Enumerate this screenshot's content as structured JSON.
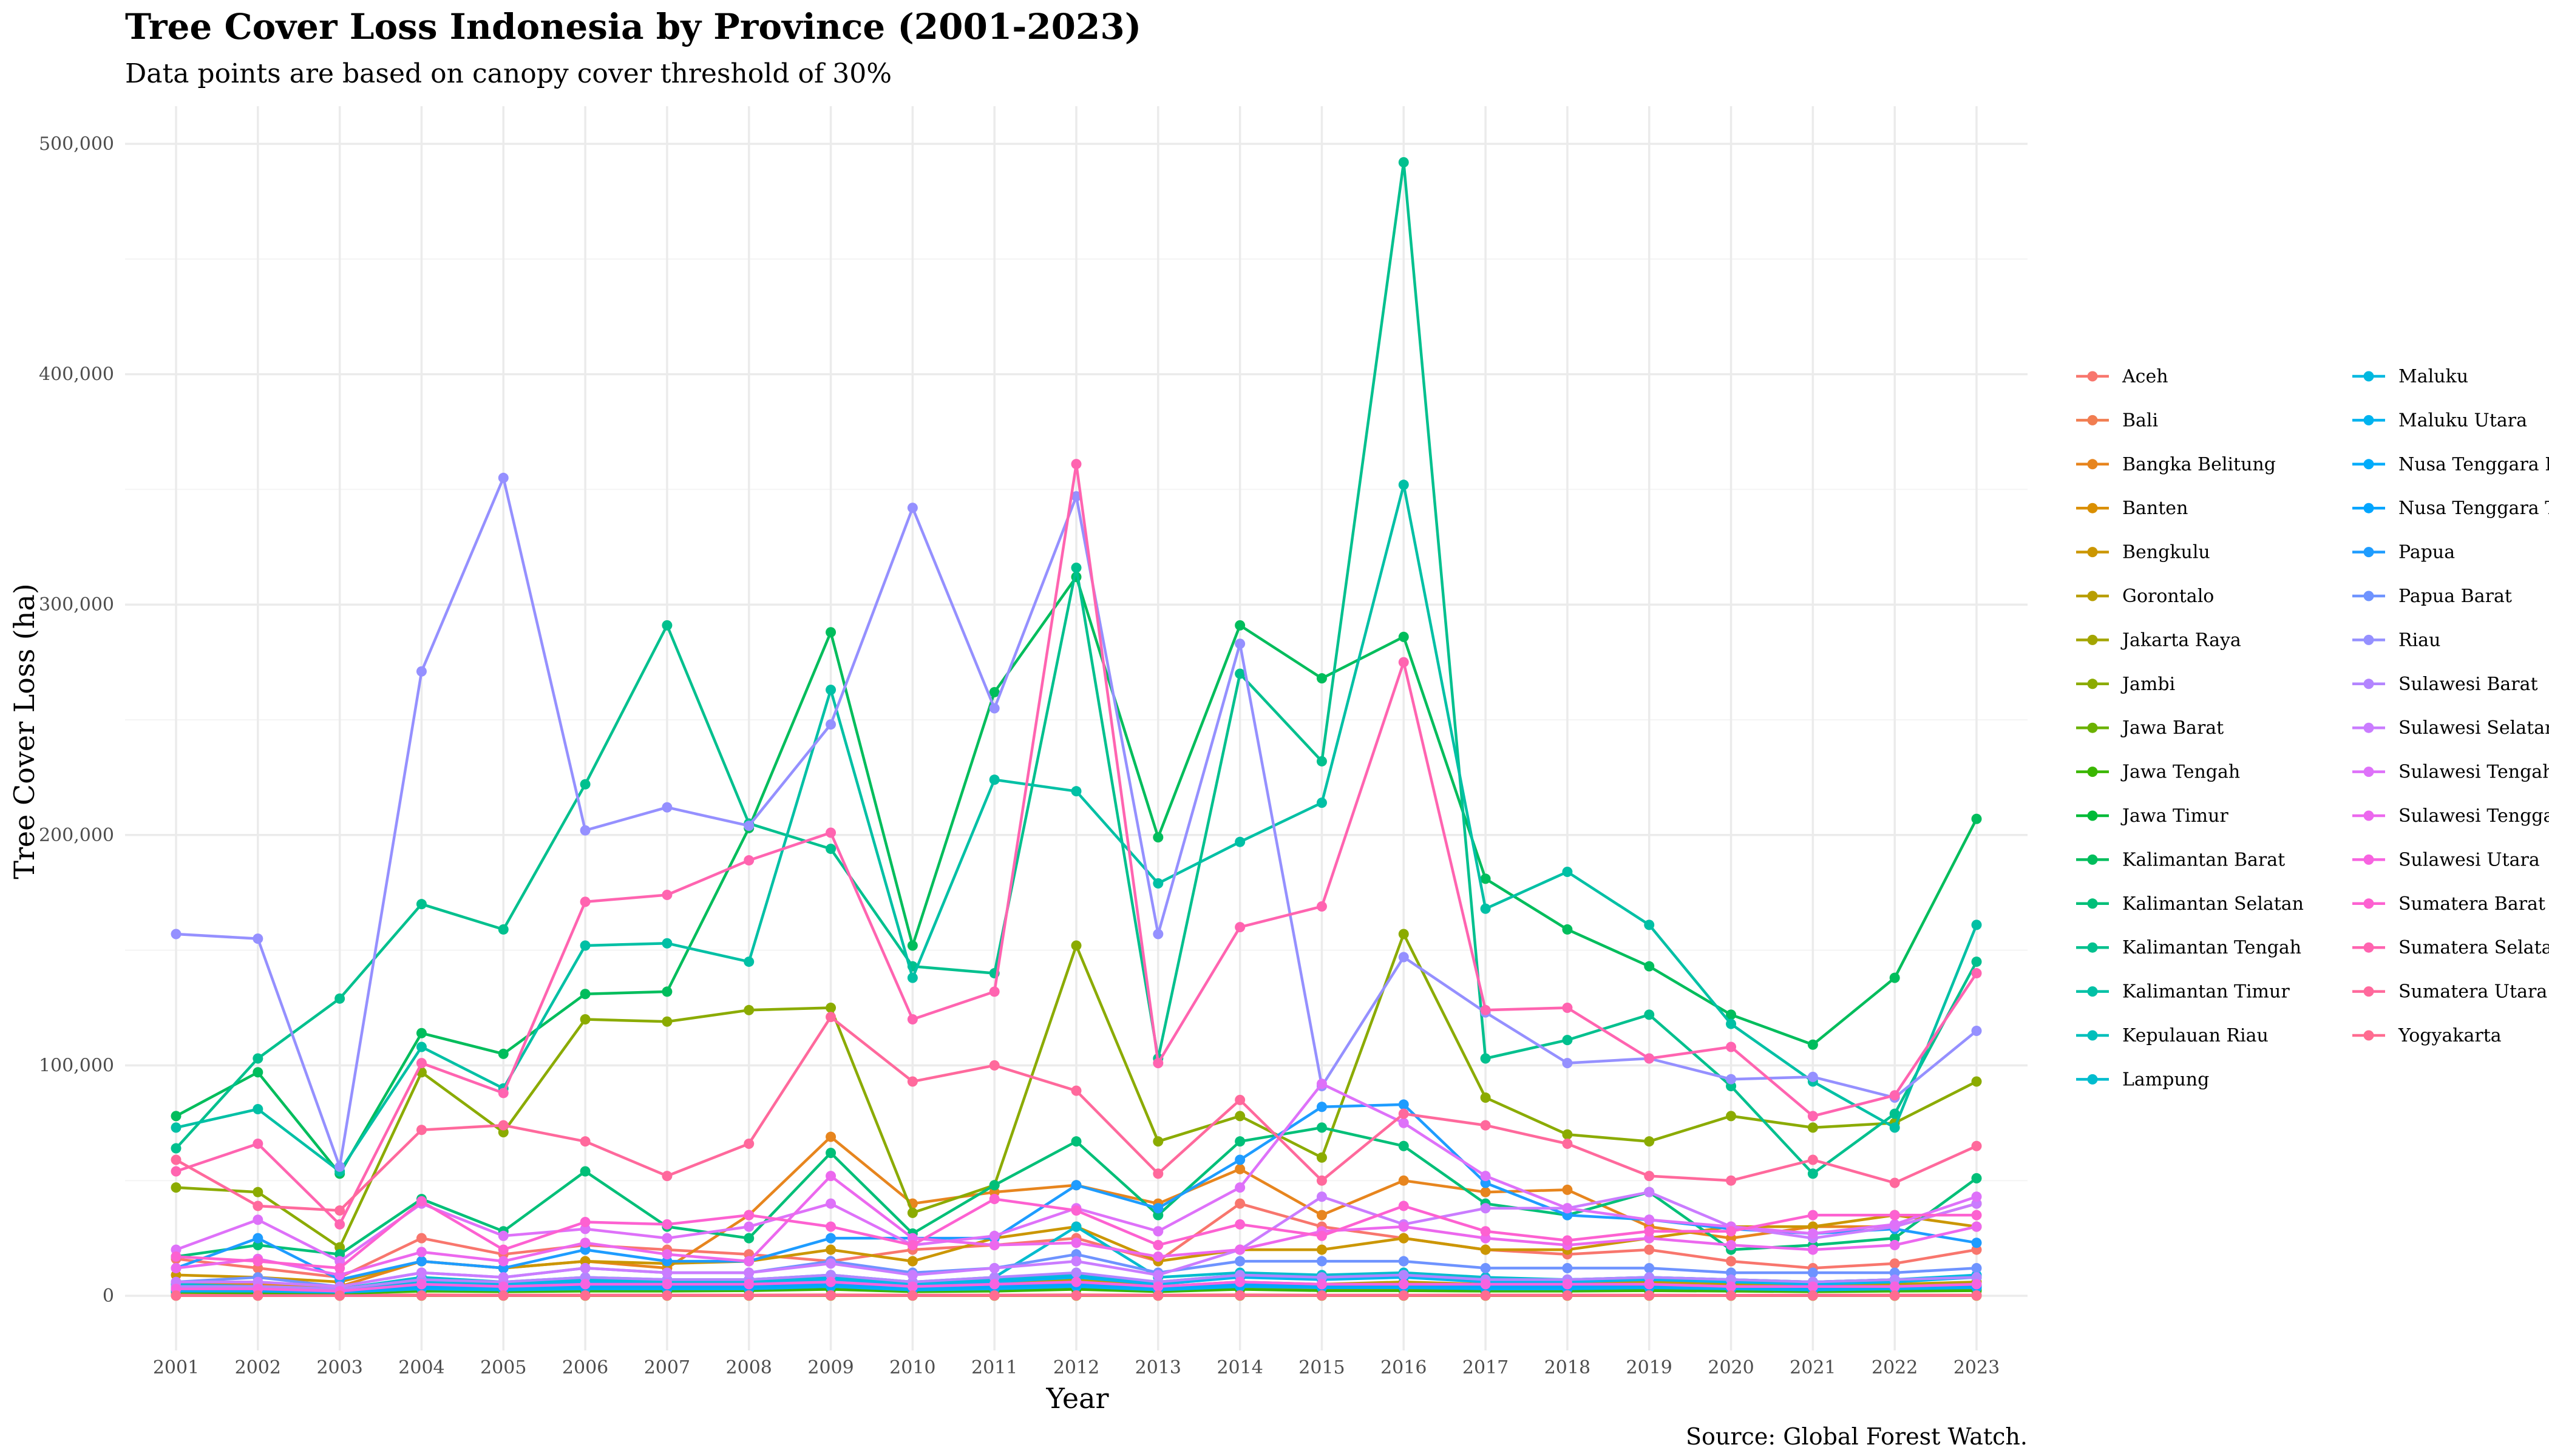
{
  "chart_data": {
    "type": "line",
    "title": "Tree Cover Loss Indonesia by Province (2001-2023)",
    "subtitle": "Data points are based on canopy cover threshold of 30%",
    "xlabel": "Year",
    "ylabel": "Tree Cover Loss (ha)",
    "caption": "Source: Global Forest Watch.",
    "ylim": [
      0,
      500000
    ],
    "y_ticks": [
      0,
      100000,
      200000,
      300000,
      400000,
      500000
    ],
    "y_tick_labels": [
      "0",
      "100,000",
      "200,000",
      "300,000",
      "400,000",
      "500,000"
    ],
    "grid": true,
    "legend_position": "right",
    "x": [
      "2001",
      "2002",
      "2003",
      "2004",
      "2005",
      "2006",
      "2007",
      "2008",
      "2009",
      "2010",
      "2011",
      "2012",
      "2013",
      "2014",
      "2015",
      "2016",
      "2017",
      "2018",
      "2019",
      "2020",
      "2021",
      "2022",
      "2023"
    ],
    "series": [
      {
        "name": "Aceh",
        "color": "#F8766D",
        "values": [
          16000,
          12000,
          8000,
          25000,
          18000,
          22000,
          20000,
          18000,
          15000,
          20000,
          22000,
          25000,
          15000,
          40000,
          30000,
          25000,
          20000,
          18000,
          20000,
          15000,
          12000,
          14000,
          20000
        ]
      },
      {
        "name": "Bali",
        "color": "#F17D51",
        "values": [
          300,
          300,
          200,
          400,
          300,
          300,
          300,
          300,
          400,
          300,
          300,
          400,
          300,
          400,
          300,
          300,
          300,
          300,
          300,
          200,
          300,
          300,
          300
        ]
      },
      {
        "name": "Bangka Belitung",
        "color": "#E7851E",
        "values": [
          5000,
          5000,
          4000,
          15000,
          12000,
          15000,
          12000,
          35000,
          69000,
          40000,
          45000,
          48000,
          40000,
          55000,
          35000,
          50000,
          45000,
          46000,
          30000,
          25000,
          30000,
          30000,
          40000
        ]
      },
      {
        "name": "Banten",
        "color": "#DA8F00",
        "values": [
          2000,
          1800,
          1200,
          3000,
          2500,
          3000,
          2800,
          3000,
          4000,
          2500,
          3000,
          3500,
          2500,
          4000,
          3000,
          3000,
          2500,
          2500,
          3000,
          2500,
          2000,
          2500,
          3000
        ]
      },
      {
        "name": "Bengkulu",
        "color": "#CB9600",
        "values": [
          9000,
          8000,
          6000,
          15000,
          12000,
          15000,
          14000,
          15000,
          20000,
          15000,
          25000,
          30000,
          15000,
          20000,
          20000,
          25000,
          20000,
          20000,
          25000,
          30000,
          30000,
          35000,
          30000
        ]
      },
      {
        "name": "Gorontalo",
        "color": "#B89E00",
        "values": [
          3000,
          2500,
          2000,
          4000,
          3500,
          4000,
          4000,
          5000,
          7000,
          4000,
          5000,
          7000,
          4000,
          6000,
          5000,
          6000,
          5000,
          5000,
          6000,
          5000,
          4000,
          5000,
          6000
        ]
      },
      {
        "name": "Jakarta Raya",
        "color": "#A3A500",
        "values": [
          50,
          50,
          40,
          60,
          50,
          50,
          60,
          50,
          60,
          50,
          50,
          60,
          50,
          60,
          50,
          50,
          50,
          50,
          50,
          40,
          40,
          40,
          50
        ]
      },
      {
        "name": "Jambi",
        "color": "#8BAB00",
        "values": [
          47000,
          45000,
          21000,
          97000,
          71000,
          120000,
          119000,
          124000,
          125000,
          36000,
          48000,
          152000,
          67000,
          78000,
          60000,
          157000,
          86000,
          70000,
          67000,
          78000,
          73000,
          75000,
          93000
        ]
      },
      {
        "name": "Jawa Barat",
        "color": "#6BB100",
        "values": [
          2500,
          2000,
          1500,
          3500,
          3000,
          3500,
          3500,
          4000,
          5000,
          3000,
          3500,
          5000,
          3000,
          5000,
          4000,
          4000,
          3500,
          3500,
          4000,
          3500,
          3000,
          3500,
          4000
        ]
      },
      {
        "name": "Jawa Tengah",
        "color": "#3AB600",
        "values": [
          1500,
          1200,
          1000,
          2000,
          1800,
          2000,
          2000,
          2200,
          2800,
          1800,
          2000,
          2800,
          1800,
          2800,
          2200,
          2200,
          2000,
          2000,
          2200,
          2000,
          1800,
          2000,
          2200
        ]
      },
      {
        "name": "Jawa Timur",
        "color": "#00BA38",
        "values": [
          3000,
          2500,
          2000,
          4000,
          3500,
          4000,
          4000,
          4500,
          6000,
          3500,
          4000,
          6000,
          3500,
          6000,
          4500,
          4500,
          4000,
          4000,
          4500,
          4000,
          3500,
          4000,
          4500
        ]
      },
      {
        "name": "Kalimantan Barat",
        "color": "#00BD5C",
        "values": [
          78000,
          97000,
          53000,
          114000,
          105000,
          131000,
          132000,
          203000,
          288000,
          152000,
          262000,
          312000,
          199000,
          291000,
          268000,
          286000,
          181000,
          159000,
          143000,
          122000,
          109000,
          138000,
          207000
        ]
      },
      {
        "name": "Kalimantan Selatan",
        "color": "#00BF78",
        "values": [
          17000,
          22000,
          18000,
          42000,
          28000,
          54000,
          30000,
          25000,
          62000,
          27000,
          48000,
          67000,
          35000,
          67000,
          73000,
          65000,
          40000,
          35000,
          45000,
          20000,
          22000,
          25000,
          51000
        ]
      },
      {
        "name": "Kalimantan Tengah",
        "color": "#00C08E",
        "values": [
          64000,
          103000,
          129000,
          170000,
          159000,
          222000,
          291000,
          205000,
          194000,
          143000,
          140000,
          316000,
          103000,
          270000,
          232000,
          492000,
          103000,
          111000,
          122000,
          91000,
          53000,
          79000,
          145000
        ]
      },
      {
        "name": "Kalimantan Timur",
        "color": "#00C0A5",
        "values": [
          73000,
          81000,
          54000,
          108000,
          90000,
          152000,
          153000,
          145000,
          263000,
          138000,
          224000,
          219000,
          179000,
          197000,
          214000,
          352000,
          168000,
          184000,
          161000,
          118000,
          93000,
          73000,
          161000
        ]
      },
      {
        "name": "Kepulauan Riau",
        "color": "#00BFBB",
        "values": [
          2500,
          2500,
          1500,
          3000,
          3000,
          4000,
          3000,
          3500,
          5000,
          3000,
          4000,
          5000,
          3000,
          4000,
          4000,
          5000,
          3000,
          3000,
          3500,
          3000,
          3000,
          3000,
          4000
        ]
      },
      {
        "name": "Lampung",
        "color": "#00BCCE",
        "values": [
          5000,
          4000,
          3000,
          8000,
          6000,
          8000,
          7000,
          7000,
          9000,
          6000,
          8000,
          30000,
          8000,
          10000,
          9000,
          10000,
          8000,
          7000,
          8000,
          7000,
          6000,
          7000,
          8000
        ]
      },
      {
        "name": "Maluku",
        "color": "#00B8E0",
        "values": [
          4000,
          4000,
          3000,
          6000,
          5000,
          7000,
          6000,
          6000,
          8000,
          5000,
          7000,
          9000,
          6000,
          9000,
          8000,
          9000,
          7000,
          7000,
          8000,
          7000,
          6000,
          7000,
          9000
        ]
      },
      {
        "name": "Maluku Utara",
        "color": "#00B3EF",
        "values": [
          3500,
          3500,
          2500,
          5000,
          4500,
          6000,
          5000,
          5000,
          7000,
          4500,
          6000,
          8000,
          5000,
          8000,
          7000,
          8000,
          6000,
          6000,
          7000,
          6000,
          5000,
          6000,
          8000
        ]
      },
      {
        "name": "Nusa Tenggara Barat",
        "color": "#00ACFB",
        "values": [
          2000,
          2000,
          1500,
          3000,
          2500,
          3000,
          3000,
          3000,
          4000,
          2500,
          3000,
          4000,
          2500,
          4000,
          3500,
          3500,
          3000,
          3000,
          3500,
          3000,
          2500,
          3000,
          3500
        ]
      },
      {
        "name": "Nusa Tenggara Timur",
        "color": "#00A5FF",
        "values": [
          3000,
          3000,
          2000,
          4000,
          3500,
          4000,
          4000,
          4000,
          5000,
          3500,
          4000,
          5000,
          3500,
          5000,
          4500,
          4500,
          4000,
          4000,
          4500,
          4000,
          3500,
          4000,
          4500
        ]
      },
      {
        "name": "Papua",
        "color": "#1E9CFF",
        "values": [
          12000,
          25000,
          7000,
          15000,
          12000,
          20000,
          15000,
          15000,
          25000,
          25000,
          25000,
          48000,
          38000,
          59000,
          82000,
          83000,
          49000,
          35000,
          33000,
          29000,
          27000,
          29000,
          23000
        ]
      },
      {
        "name": "Papua Barat",
        "color": "#6E93FF",
        "values": [
          6000,
          8000,
          4000,
          10000,
          8000,
          12000,
          10000,
          10000,
          15000,
          10000,
          12000,
          18000,
          10000,
          15000,
          15000,
          15000,
          12000,
          12000,
          12000,
          10000,
          10000,
          10000,
          12000
        ]
      },
      {
        "name": "Riau",
        "color": "#9590FF",
        "values": [
          157000,
          155000,
          56000,
          271000,
          355000,
          202000,
          212000,
          204000,
          248000,
          342000,
          255000,
          347000,
          157000,
          283000,
          91000,
          147000,
          123000,
          101000,
          103000,
          94000,
          95000,
          86000,
          115000
        ]
      },
      {
        "name": "Sulawesi Barat",
        "color": "#B385FF",
        "values": [
          4000,
          4000,
          3000,
          7000,
          6000,
          8000,
          7000,
          7000,
          9000,
          6000,
          8000,
          10000,
          6000,
          9000,
          8000,
          9000,
          7000,
          7000,
          8000,
          7000,
          6000,
          7000,
          8000
        ]
      },
      {
        "name": "Sulawesi Selatan",
        "color": "#CA7CFF",
        "values": [
          6000,
          6000,
          4000,
          10000,
          8000,
          12000,
          10000,
          10000,
          14000,
          9000,
          12000,
          15000,
          9000,
          20000,
          43000,
          31000,
          38000,
          38000,
          45000,
          30000,
          25000,
          30000,
          40000
        ]
      },
      {
        "name": "Sulawesi Tengah",
        "color": "#DE71F9",
        "values": [
          20000,
          33000,
          15000,
          40000,
          26000,
          29000,
          25000,
          30000,
          40000,
          22000,
          26000,
          38000,
          28000,
          47000,
          92000,
          75000,
          52000,
          38000,
          33000,
          30000,
          27000,
          31000,
          43000
        ]
      },
      {
        "name": "Sulawesi Tenggara",
        "color": "#EC68EE",
        "values": [
          12000,
          16000,
          9000,
          19000,
          15000,
          23000,
          18000,
          15000,
          52000,
          25000,
          22000,
          23000,
          17000,
          20000,
          28000,
          30000,
          25000,
          22000,
          25000,
          22000,
          20000,
          22000,
          30000
        ]
      },
      {
        "name": "Sulawesi Utara",
        "color": "#F763E0",
        "values": [
          3000,
          3000,
          2000,
          5000,
          4000,
          5000,
          5000,
          5000,
          6000,
          4000,
          5000,
          6000,
          4000,
          6000,
          5000,
          5000,
          5000,
          5000,
          5000,
          4000,
          4000,
          4000,
          5000
        ]
      },
      {
        "name": "Sumatera Barat",
        "color": "#FD61D1",
        "values": [
          17000,
          15000,
          12000,
          41000,
          20000,
          32000,
          31000,
          35000,
          30000,
          22000,
          42000,
          37000,
          22000,
          31000,
          26000,
          39000,
          28000,
          24000,
          28000,
          28000,
          35000,
          35000,
          35000
        ]
      },
      {
        "name": "Sumatera Selatan",
        "color": "#FF64B0",
        "values": [
          54000,
          66000,
          31000,
          101000,
          88000,
          171000,
          174000,
          189000,
          201000,
          120000,
          132000,
          361000,
          101000,
          160000,
          169000,
          275000,
          124000,
          125000,
          103000,
          108000,
          78000,
          87000,
          140000
        ]
      },
      {
        "name": "Sumatera Utara",
        "color": "#FF699C",
        "values": [
          59000,
          39000,
          37000,
          72000,
          74000,
          67000,
          52000,
          66000,
          121000,
          93000,
          100000,
          89000,
          53000,
          85000,
          50000,
          79000,
          74000,
          66000,
          52000,
          50000,
          59000,
          49000,
          65000
        ]
      },
      {
        "name": "Yogyakarta",
        "color": "#FF6C91",
        "values": [
          100,
          100,
          80,
          150,
          120,
          150,
          150,
          150,
          180,
          120,
          150,
          180,
          120,
          180,
          150,
          150,
          150,
          150,
          150,
          120,
          120,
          120,
          150
        ]
      }
    ]
  }
}
